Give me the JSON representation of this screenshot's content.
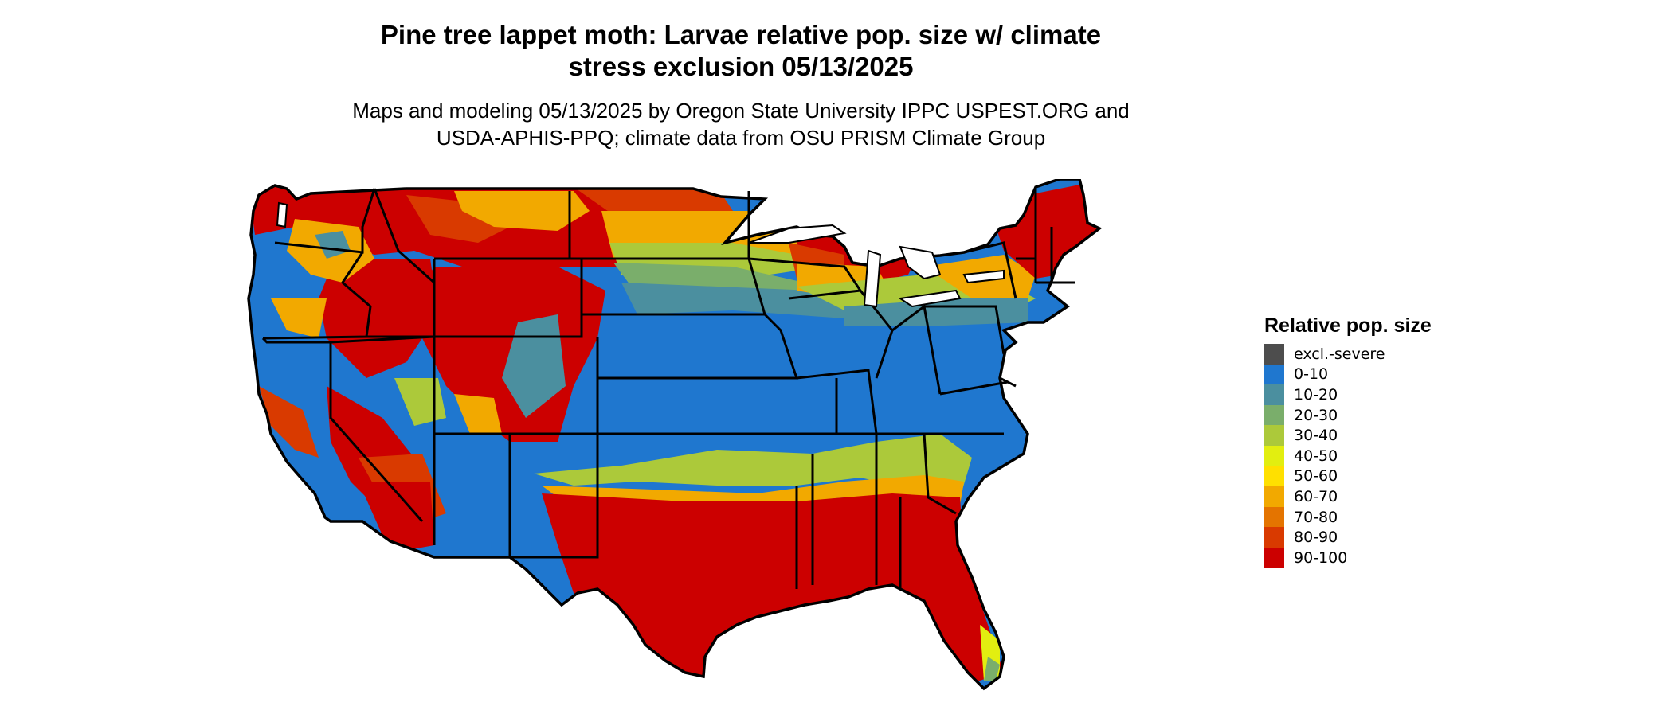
{
  "title_line1": "Pine tree lappet moth: Larvae relative pop. size w/ climate",
  "title_line2": "stress exclusion 05/13/2025",
  "subtitle_line1": "Maps and modeling 05/13/2025 by Oregon State University IPPC USPEST.ORG and",
  "subtitle_line2": "USDA-APHIS-PPQ; climate data from OSU PRISM Climate Group",
  "legend": {
    "title": "Relative pop. size",
    "items": [
      {
        "label": "excl.-severe",
        "color": "#4d4d4d"
      },
      {
        "label": "0-10",
        "color": "#1f77cf"
      },
      {
        "label": "10-20",
        "color": "#4b8f9f"
      },
      {
        "label": "20-30",
        "color": "#7aae6b"
      },
      {
        "label": "30-40",
        "color": "#acc93a"
      },
      {
        "label": "40-50",
        "color": "#e2ee10"
      },
      {
        "label": "50-60",
        "color": "#ffe000"
      },
      {
        "label": "60-70",
        "color": "#f2a900"
      },
      {
        "label": "70-80",
        "color": "#e47400"
      },
      {
        "label": "80-90",
        "color": "#d93a00"
      },
      {
        "label": "90-100",
        "color": "#cc0000"
      }
    ]
  },
  "map": {
    "region": "contiguous-united-states",
    "outline_color": "#000000",
    "land_color": "#1f77cf"
  }
}
